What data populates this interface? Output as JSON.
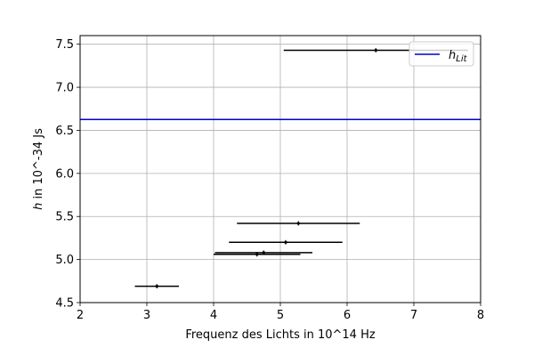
{
  "chart_data": {
    "type": "scatter",
    "xlabel": "Frequenz des Lichts in 10^14 Hz",
    "ylabel_prefix": "h",
    "ylabel_suffix": " in 10^-34 Js",
    "xlim": [
      2,
      8
    ],
    "ylim": [
      4.5,
      7.6
    ],
    "x_ticks": [
      "2",
      "3",
      "4",
      "5",
      "6",
      "7",
      "8"
    ],
    "y_ticks": [
      "4.5",
      "5.0",
      "5.5",
      "6.0",
      "6.5",
      "7.0",
      "7.5"
    ],
    "grid": true,
    "legend_position": "upper-right",
    "series": [
      {
        "kind": "errorbar",
        "color": "#000000",
        "points": [
          {
            "x": 3.15,
            "y": 4.69,
            "xerr_low": 0.33,
            "xerr_high": 0.33
          },
          {
            "x": 4.65,
            "y": 5.06,
            "xerr_low": 0.65,
            "xerr_high": 0.65
          },
          {
            "x": 4.75,
            "y": 5.08,
            "xerr_low": 0.73,
            "xerr_high": 0.73
          },
          {
            "x": 5.08,
            "y": 5.2,
            "xerr_low": 0.85,
            "xerr_high": 0.85
          },
          {
            "x": 5.27,
            "y": 5.42,
            "xerr_low": 0.92,
            "xerr_high": 0.92
          },
          {
            "x": 6.43,
            "y": 7.43,
            "xerr_low": 1.38,
            "xerr_high": 1.38
          }
        ]
      },
      {
        "kind": "hline",
        "name_main": "h",
        "name_sub": "Lit",
        "color": "#0000cc",
        "y": 6.626
      }
    ]
  }
}
